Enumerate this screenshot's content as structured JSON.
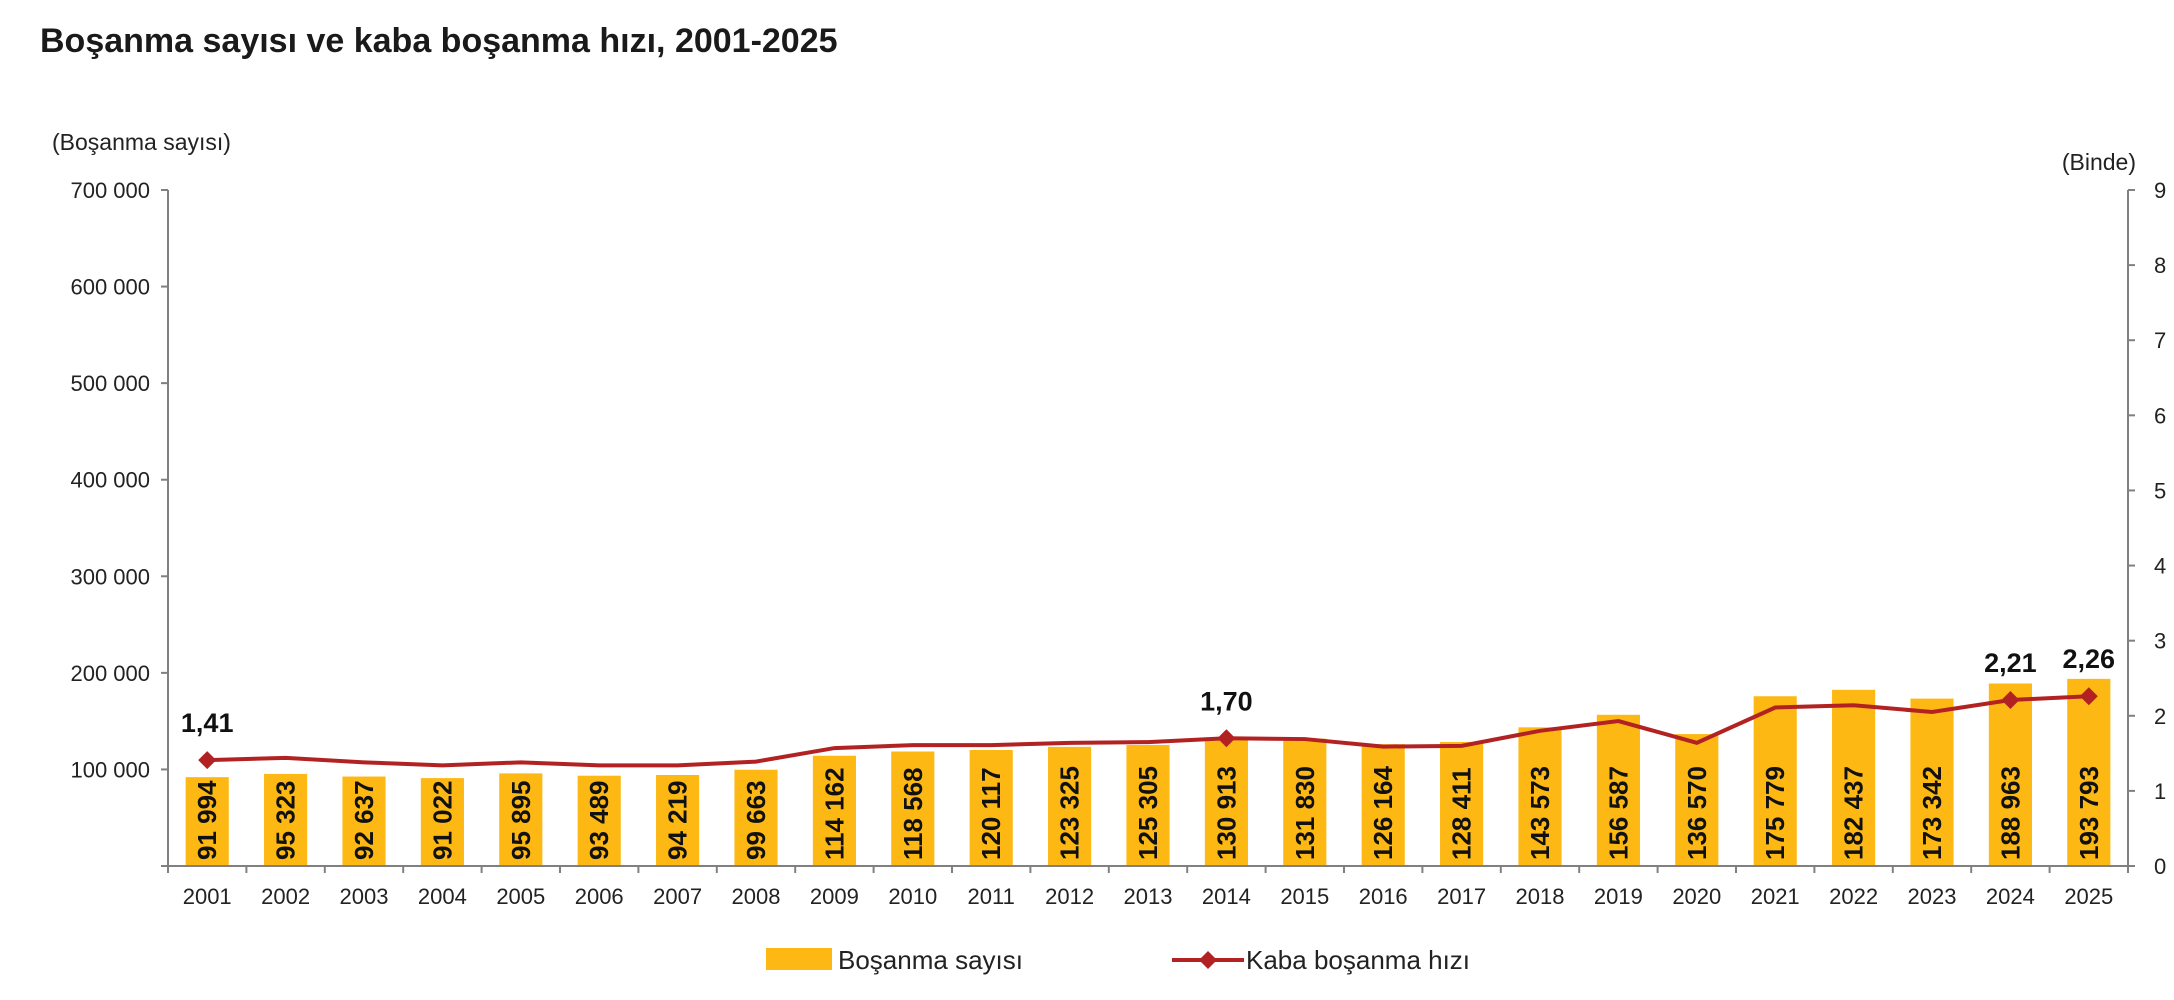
{
  "chart_data": {
    "type": "bar",
    "title": "Boşanma sayısı ve kaba boşanma hızı, 2001-2025",
    "ylabel_left": "(Boşanma sayısı)",
    "ylabel_right": "(Binde)",
    "ylim_left": [
      0,
      700000
    ],
    "ylim_right": [
      0,
      9
    ],
    "yticks_left": [
      "700 000",
      "600 000",
      "500 000",
      "400 000",
      "300 000",
      "200 000",
      "100 000",
      ""
    ],
    "yticks_right": [
      "9",
      "8",
      "7",
      "6",
      "5",
      "4",
      "3",
      "2",
      "1",
      "0"
    ],
    "categories": [
      "2001",
      "2002",
      "2003",
      "2004",
      "2005",
      "2006",
      "2007",
      "2008",
      "2009",
      "2010",
      "2011",
      "2012",
      "2013",
      "2014",
      "2015",
      "2016",
      "2017",
      "2018",
      "2019",
      "2020",
      "2021",
      "2022",
      "2023",
      "2024",
      "2025"
    ],
    "series": [
      {
        "name": "Boşanma sayısı",
        "type": "bar",
        "color": "#FDB813",
        "values": [
          91994,
          95323,
          92637,
          91022,
          95895,
          93489,
          94219,
          99663,
          114162,
          118568,
          120117,
          123325,
          125305,
          130913,
          131830,
          126164,
          128411,
          143573,
          156587,
          136570,
          175779,
          182437,
          173342,
          188963,
          193793
        ],
        "labels": [
          "91 994",
          "95 323",
          "92 637",
          "91 022",
          "95 895",
          "93 489",
          "94 219",
          "99 663",
          "114 162",
          "118 568",
          "120 117",
          "123 325",
          "125 305",
          "130 913",
          "131 830",
          "126 164",
          "128 411",
          "143 573",
          "156 587",
          "136 570",
          "175 779",
          "182 437",
          "173 342",
          "188 963",
          "193 793"
        ]
      },
      {
        "name": "Kaba boşanma hızı",
        "type": "line",
        "axis": "right",
        "color": "#B22222",
        "values": [
          1.41,
          1.44,
          1.38,
          1.34,
          1.38,
          1.34,
          1.34,
          1.39,
          1.57,
          1.61,
          1.61,
          1.64,
          1.65,
          1.7,
          1.69,
          1.59,
          1.6,
          1.8,
          1.93,
          1.64,
          2.11,
          2.14,
          2.05,
          2.21,
          2.26
        ],
        "point_labels": [
          {
            "index": 0,
            "text": "1,41"
          },
          {
            "index": 13,
            "text": "1,70"
          },
          {
            "index": 23,
            "text": "2,21"
          },
          {
            "index": 24,
            "text": "2,26"
          }
        ]
      }
    ],
    "legend": [
      "Boşanma sayısı",
      "Kaba boşanma hızı"
    ],
    "legend_position": "bottom",
    "grid": false
  }
}
